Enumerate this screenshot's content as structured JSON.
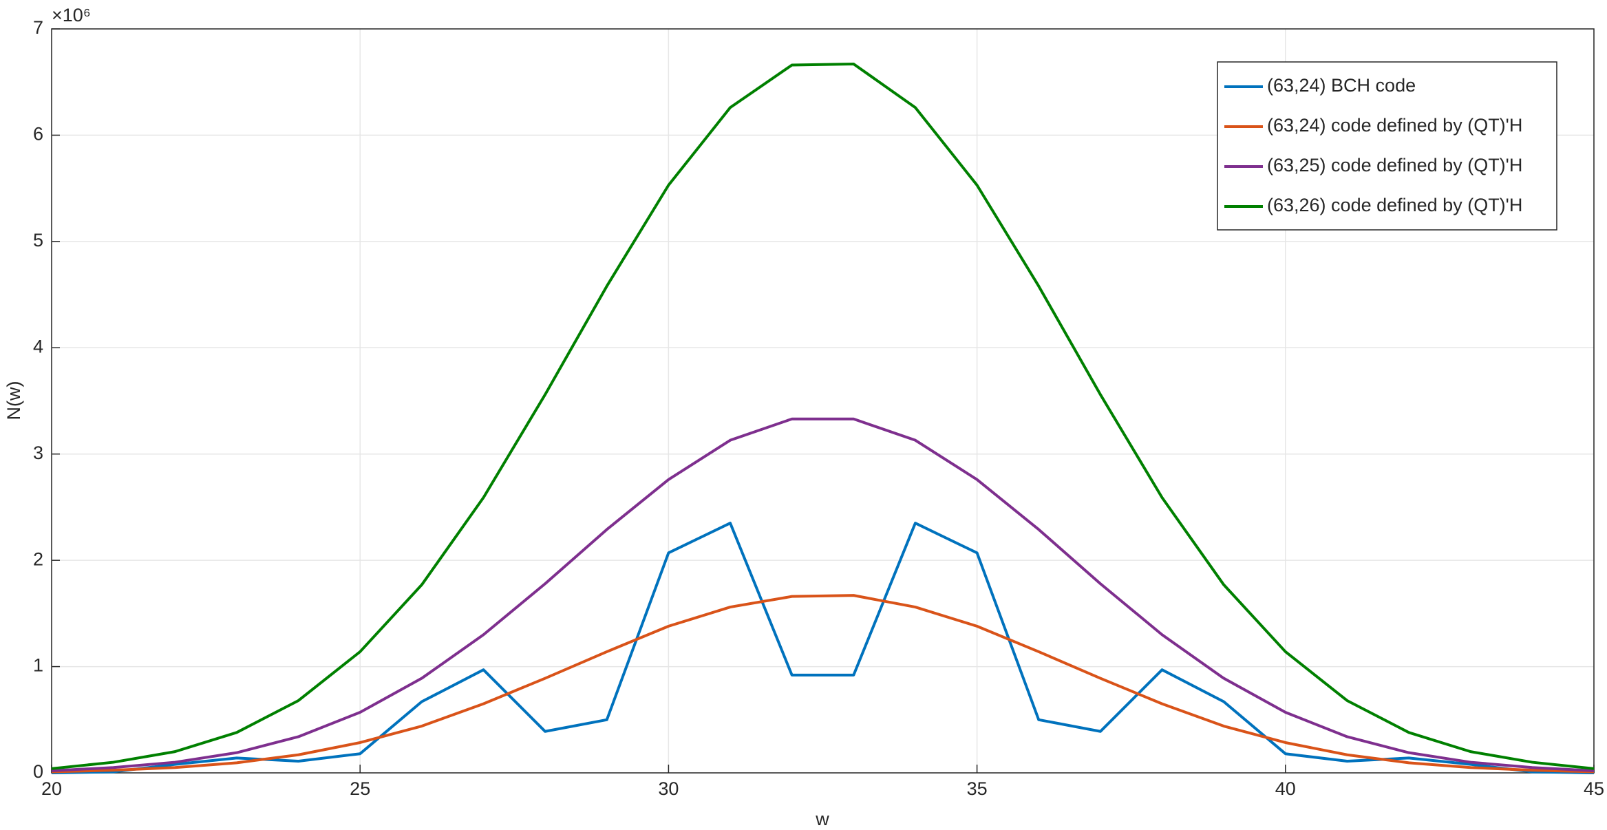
{
  "chart_data": {
    "type": "line",
    "xlabel": "w",
    "ylabel": "N(w)",
    "y_exponent_label": "×10⁶",
    "x": [
      20,
      21,
      22,
      23,
      24,
      25,
      26,
      27,
      28,
      29,
      30,
      31,
      32,
      33,
      34,
      35,
      36,
      37,
      38,
      39,
      40,
      41,
      42,
      43,
      44,
      45
    ],
    "series": [
      {
        "name": "(63,24) BCH code",
        "color": "#0072bd",
        "values": [
          0,
          0.01,
          0.08,
          0.14,
          0.11,
          0.18,
          0.67,
          0.97,
          0.39,
          0.5,
          2.07,
          2.35,
          0.92,
          0.92,
          2.35,
          2.07,
          0.5,
          0.39,
          0.97,
          0.67,
          0.18,
          0.11,
          0.14,
          0.08,
          0.01,
          0
        ]
      },
      {
        "name": "(63,24) code defined by (QT)'H",
        "color": "#d95319",
        "values": [
          0.01,
          0.025,
          0.05,
          0.095,
          0.17,
          0.285,
          0.44,
          0.65,
          0.89,
          1.14,
          1.38,
          1.56,
          1.66,
          1.67,
          1.56,
          1.38,
          1.14,
          0.89,
          0.65,
          0.44,
          0.285,
          0.17,
          0.095,
          0.05,
          0.025,
          0.01
        ]
      },
      {
        "name": "(63,25) code defined by (QT)'H",
        "color": "#7e2f8e",
        "values": [
          0.02,
          0.05,
          0.1,
          0.19,
          0.34,
          0.57,
          0.89,
          1.3,
          1.78,
          2.29,
          2.76,
          3.13,
          3.33,
          3.33,
          3.13,
          2.76,
          2.29,
          1.78,
          1.3,
          0.89,
          0.57,
          0.34,
          0.19,
          0.1,
          0.05,
          0.02
        ]
      },
      {
        "name": "(63,26) code defined by (QT)'H",
        "color": "#008000",
        "values": [
          0.04,
          0.1,
          0.2,
          0.38,
          0.68,
          1.14,
          1.77,
          2.59,
          3.56,
          4.58,
          5.53,
          6.26,
          6.66,
          6.67,
          6.26,
          5.53,
          4.58,
          3.56,
          2.59,
          1.77,
          1.14,
          0.68,
          0.38,
          0.2,
          0.1,
          0.04
        ]
      }
    ],
    "xlim": [
      20,
      45
    ],
    "xticks": [
      20,
      25,
      30,
      35,
      40,
      45
    ],
    "ylim": [
      0,
      7
    ],
    "yticks": [
      0,
      1,
      2,
      3,
      4,
      5,
      6,
      7
    ],
    "grid": true,
    "legend_position": "northeast"
  }
}
